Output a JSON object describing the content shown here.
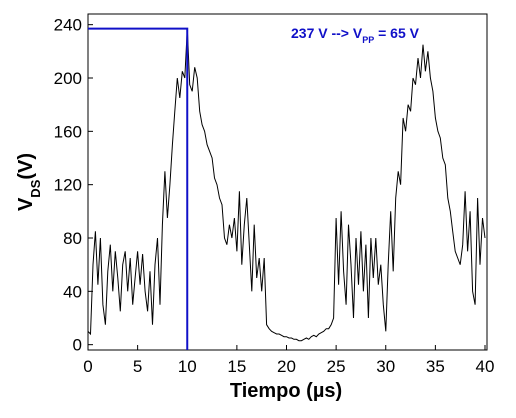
{
  "chart_data": {
    "type": "line",
    "xlabel": "Tiempo  (µs)",
    "ylabel": [
      "V",
      "DS",
      "(V)"
    ],
    "annotation": [
      "237 V --> V",
      "PP",
      " = 65 V"
    ],
    "marker": {
      "x": 10,
      "y": 237,
      "color": "#1010c8"
    },
    "color": "#000000",
    "xlim": [
      0,
      40
    ],
    "xticks": [
      0,
      5,
      10,
      15,
      20,
      25,
      30,
      35,
      40
    ],
    "ylim": [
      -4,
      248
    ],
    "yticks": [
      0,
      40,
      80,
      120,
      160,
      200,
      240
    ],
    "x": [
      0,
      0.25,
      0.5,
      0.75,
      1,
      1.25,
      1.5,
      1.75,
      2,
      2.25,
      2.5,
      2.75,
      3,
      3.25,
      3.5,
      3.75,
      4,
      4.25,
      4.5,
      4.75,
      5,
      5.25,
      5.5,
      5.75,
      6,
      6.25,
      6.5,
      6.75,
      7,
      7.25,
      7.5,
      7.75,
      8,
      8.25,
      8.5,
      8.75,
      9,
      9.25,
      9.5,
      9.75,
      10,
      10.25,
      10.5,
      10.75,
      11,
      11.25,
      11.5,
      11.75,
      12,
      12.25,
      12.5,
      12.75,
      13,
      13.25,
      13.5,
      13.75,
      14,
      14.25,
      14.5,
      14.75,
      15,
      15.25,
      15.5,
      15.75,
      16,
      16.25,
      16.5,
      16.75,
      17,
      17.25,
      17.5,
      17.75,
      18,
      18.25,
      18.5,
      18.75,
      19,
      19.25,
      19.5,
      19.75,
      20,
      20.25,
      20.5,
      20.75,
      21,
      21.25,
      21.5,
      21.75,
      22,
      22.25,
      22.5,
      22.75,
      23,
      23.25,
      23.5,
      23.75,
      24,
      24.25,
      24.5,
      24.75,
      25,
      25.25,
      25.5,
      25.75,
      26,
      26.25,
      26.5,
      26.75,
      27,
      27.25,
      27.5,
      27.75,
      28,
      28.25,
      28.5,
      28.75,
      29,
      29.25,
      29.5,
      29.75,
      30,
      30.25,
      30.5,
      30.75,
      31,
      31.25,
      31.5,
      31.75,
      32,
      32.25,
      32.5,
      32.75,
      33,
      33.25,
      33.5,
      33.75,
      34,
      34.25,
      34.5,
      34.75,
      35,
      35.25,
      35.5,
      35.75,
      36,
      36.25,
      36.5,
      36.75,
      37,
      37.25,
      37.5,
      37.75,
      38,
      38.25,
      38.5,
      38.75,
      39,
      39.25,
      39.5,
      39.75,
      40
    ],
    "values": [
      10,
      8,
      60,
      85,
      45,
      80,
      30,
      15,
      55,
      75,
      40,
      70,
      50,
      25,
      60,
      70,
      40,
      65,
      30,
      50,
      70,
      45,
      68,
      40,
      25,
      55,
      15,
      60,
      80,
      30,
      90,
      130,
      95,
      120,
      150,
      175,
      200,
      185,
      205,
      200,
      237,
      195,
      190,
      208,
      200,
      175,
      165,
      160,
      150,
      145,
      140,
      125,
      120,
      110,
      105,
      80,
      75,
      90,
      80,
      95,
      70,
      115,
      60,
      90,
      110,
      75,
      40,
      90,
      50,
      65,
      40,
      65,
      15,
      12,
      10,
      9,
      8,
      8,
      7,
      6,
      6,
      5,
      5,
      4,
      4,
      3,
      3,
      4,
      5,
      4,
      6,
      7,
      6,
      8,
      9,
      10,
      12,
      12,
      15,
      20,
      95,
      45,
      100,
      55,
      30,
      90,
      60,
      20,
      80,
      45,
      85,
      40,
      75,
      20,
      80,
      50,
      80,
      45,
      60,
      30,
      10,
      60,
      100,
      55,
      110,
      130,
      120,
      170,
      160,
      180,
      175,
      200,
      195,
      215,
      200,
      225,
      205,
      220,
      200,
      190,
      170,
      160,
      155,
      140,
      135,
      110,
      100,
      85,
      70,
      65,
      60,
      75,
      115,
      70,
      100,
      40,
      30,
      110,
      60,
      95,
      80
    ]
  }
}
